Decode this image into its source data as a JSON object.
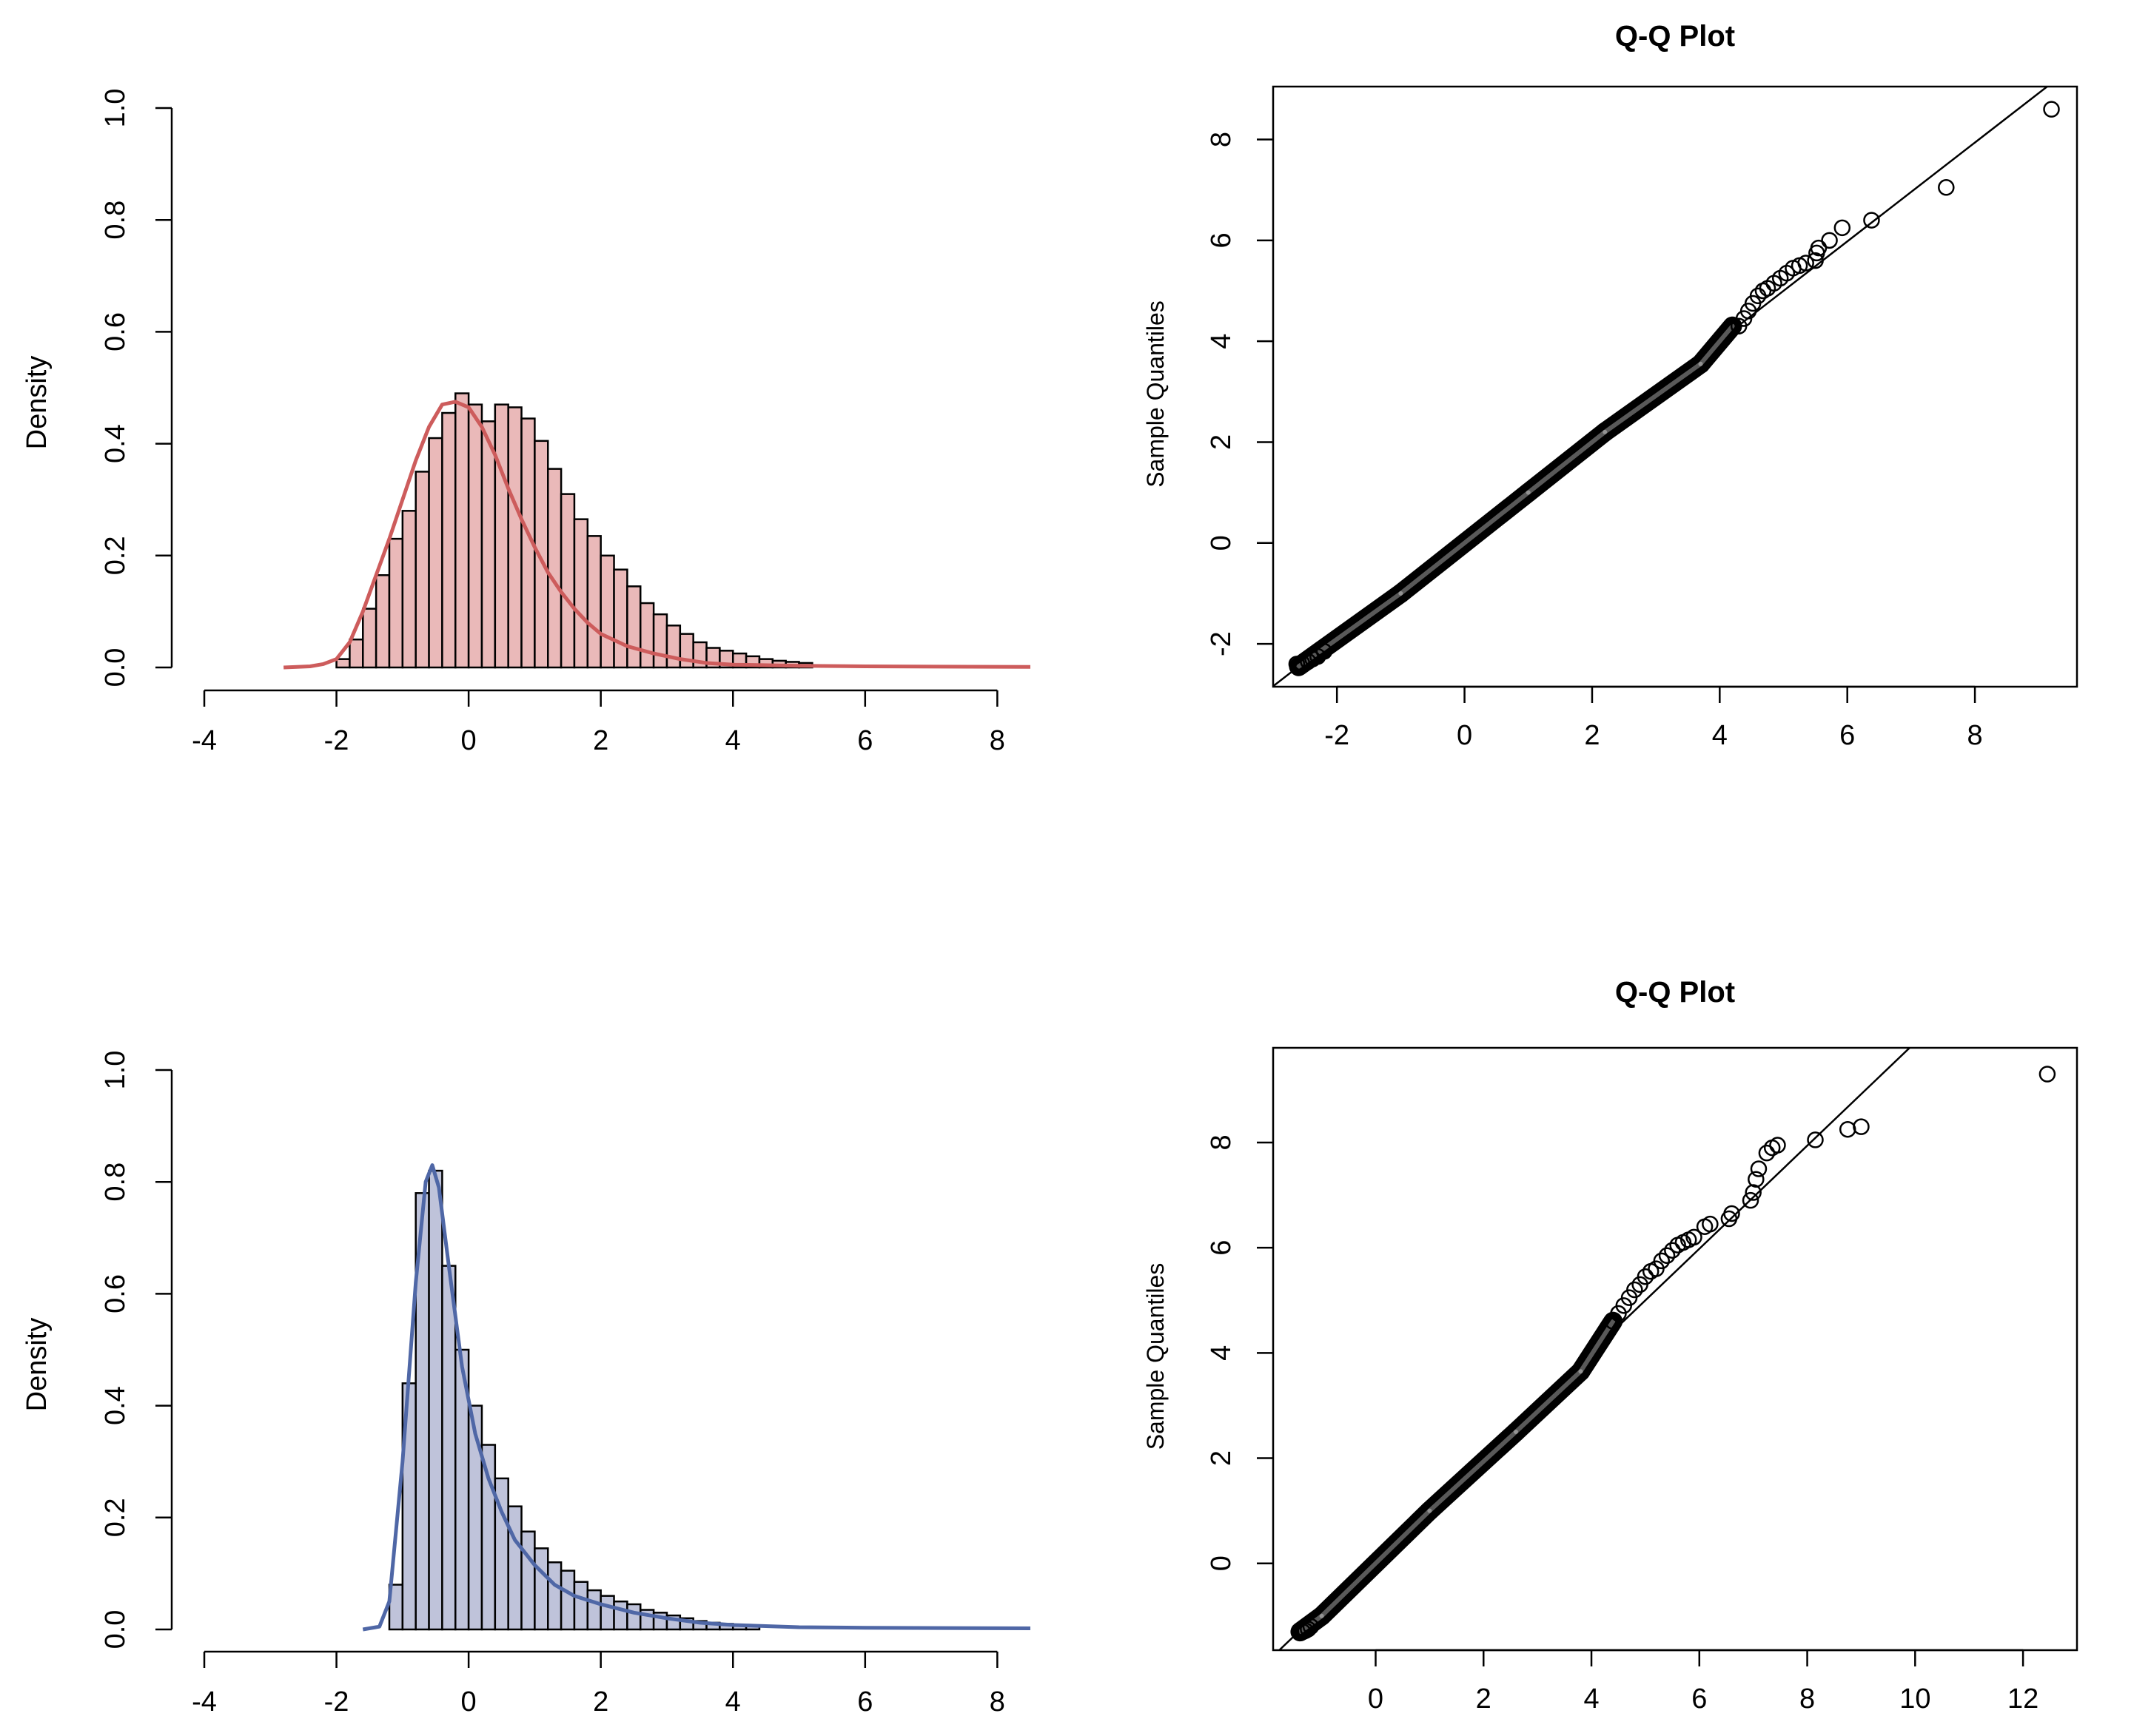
{
  "chart_data": [
    {
      "type": "histogram",
      "title": "",
      "xlabel": "",
      "ylabel": "Density",
      "xlim": [
        -4,
        8.5
      ],
      "ylim": [
        0,
        1.0
      ],
      "xticks": [
        "-4",
        "-2",
        "0",
        "2",
        "4",
        "6",
        "8"
      ],
      "yticks": [
        "0.0",
        "0.2",
        "0.4",
        "0.6",
        "0.8",
        "1.0"
      ],
      "bin_start": -2.0,
      "bin_width": 0.2,
      "bar_fill": "#eab9b9",
      "curve_color": "#cd5c5c",
      "values": [
        0.015,
        0.05,
        0.105,
        0.165,
        0.23,
        0.28,
        0.35,
        0.41,
        0.455,
        0.49,
        0.47,
        0.44,
        0.47,
        0.465,
        0.445,
        0.405,
        0.355,
        0.31,
        0.265,
        0.235,
        0.2,
        0.175,
        0.145,
        0.115,
        0.095,
        0.075,
        0.06,
        0.045,
        0.035,
        0.03,
        0.025,
        0.02,
        0.015,
        0.012,
        0.01,
        0.008
      ],
      "density_curve": [
        [
          -2.8,
          0.0
        ],
        [
          -2.4,
          0.002
        ],
        [
          -2.2,
          0.006
        ],
        [
          -2.0,
          0.015
        ],
        [
          -1.8,
          0.045
        ],
        [
          -1.6,
          0.1
        ],
        [
          -1.4,
          0.165
        ],
        [
          -1.2,
          0.23
        ],
        [
          -1.0,
          0.3
        ],
        [
          -0.8,
          0.37
        ],
        [
          -0.6,
          0.43
        ],
        [
          -0.4,
          0.47
        ],
        [
          -0.2,
          0.475
        ],
        [
          0.0,
          0.465
        ],
        [
          0.2,
          0.43
        ],
        [
          0.4,
          0.38
        ],
        [
          0.6,
          0.32
        ],
        [
          0.8,
          0.265
        ],
        [
          1.0,
          0.215
        ],
        [
          1.2,
          0.17
        ],
        [
          1.4,
          0.135
        ],
        [
          1.6,
          0.105
        ],
        [
          1.8,
          0.08
        ],
        [
          2.0,
          0.06
        ],
        [
          2.4,
          0.038
        ],
        [
          2.8,
          0.025
        ],
        [
          3.2,
          0.015
        ],
        [
          3.6,
          0.008
        ],
        [
          4.0,
          0.005
        ],
        [
          5.0,
          0.003
        ],
        [
          6.0,
          0.002
        ],
        [
          8.5,
          0.001
        ]
      ]
    },
    {
      "type": "scatter",
      "title": "Q-Q Plot",
      "xlabel": "",
      "ylabel": "Sample Quantiles",
      "xlim": [
        -3.0,
        9.6
      ],
      "ylim": [
        -2.85,
        9.05
      ],
      "xticks": [
        "-2",
        "0",
        "2",
        "4",
        "6",
        "8"
      ],
      "yticks": [
        "-2",
        "0",
        "2",
        "4",
        "6",
        "8"
      ],
      "reference_line": {
        "slope": 0.98,
        "intercept": 0.1
      },
      "dense_segments": [
        [
          -2.6,
          -2.45,
          -1.0,
          -1.0
        ],
        [
          -1.0,
          -1.0,
          1.0,
          1.0
        ],
        [
          1.0,
          1.0,
          2.2,
          2.2
        ],
        [
          2.2,
          2.2,
          3.7,
          3.55
        ],
        [
          3.7,
          3.55,
          4.2,
          4.3
        ]
      ],
      "x": [
        -2.63,
        -2.55,
        -2.45,
        -2.38,
        -2.3,
        -2.2,
        4.3,
        4.38,
        4.45,
        4.52,
        4.6,
        4.68,
        4.75,
        4.85,
        4.95,
        5.05,
        5.15,
        5.25,
        5.35,
        5.5,
        5.52,
        5.55,
        5.72,
        5.92,
        6.38,
        7.55,
        9.2
      ],
      "y": [
        -2.4,
        -2.38,
        -2.35,
        -2.3,
        -2.25,
        -2.15,
        4.3,
        4.45,
        4.6,
        4.75,
        4.9,
        5.0,
        5.05,
        5.15,
        5.25,
        5.35,
        5.45,
        5.5,
        5.55,
        5.6,
        5.75,
        5.85,
        6.0,
        6.25,
        6.4,
        7.05,
        8.6
      ]
    },
    {
      "type": "histogram",
      "title": "",
      "xlabel": "",
      "ylabel": "Density",
      "xlim": [
        -4,
        8.5
      ],
      "ylim": [
        0,
        1.0
      ],
      "xticks": [
        "-4",
        "-2",
        "0",
        "2",
        "4",
        "6",
        "8"
      ],
      "yticks": [
        "0.0",
        "0.2",
        "0.4",
        "0.6",
        "0.8",
        "1.0"
      ],
      "bin_start": -1.2,
      "bin_width": 0.2,
      "bar_fill": "#bfc3da",
      "curve_color": "#4f67a6",
      "values": [
        0.08,
        0.44,
        0.78,
        0.82,
        0.65,
        0.5,
        0.4,
        0.33,
        0.27,
        0.22,
        0.175,
        0.145,
        0.12,
        0.105,
        0.085,
        0.07,
        0.06,
        0.05,
        0.045,
        0.035,
        0.03,
        0.025,
        0.02,
        0.015,
        0.012,
        0.01,
        0.008,
        0.006
      ],
      "density_curve": [
        [
          -1.6,
          0.0
        ],
        [
          -1.35,
          0.005
        ],
        [
          -1.2,
          0.05
        ],
        [
          -1.0,
          0.3
        ],
        [
          -0.8,
          0.62
        ],
        [
          -0.65,
          0.8
        ],
        [
          -0.55,
          0.83
        ],
        [
          -0.45,
          0.79
        ],
        [
          -0.3,
          0.65
        ],
        [
          -0.1,
          0.47
        ],
        [
          0.1,
          0.35
        ],
        [
          0.3,
          0.27
        ],
        [
          0.5,
          0.21
        ],
        [
          0.7,
          0.16
        ],
        [
          1.0,
          0.115
        ],
        [
          1.3,
          0.08
        ],
        [
          1.6,
          0.06
        ],
        [
          2.0,
          0.045
        ],
        [
          2.5,
          0.03
        ],
        [
          3.0,
          0.02
        ],
        [
          3.5,
          0.012
        ],
        [
          4.0,
          0.008
        ],
        [
          5.0,
          0.004
        ],
        [
          6.0,
          0.003
        ],
        [
          8.5,
          0.002
        ]
      ]
    },
    {
      "type": "scatter",
      "title": "Q-Q Plot",
      "xlabel": "",
      "ylabel": "Sample Quantiles",
      "xlim": [
        -1.9,
        13.0
      ],
      "ylim": [
        -1.65,
        9.8
      ],
      "xticks": [
        "0",
        "2",
        "4",
        "6",
        "8",
        "10",
        "12"
      ],
      "yticks": [
        "0",
        "2",
        "4",
        "6",
        "8"
      ],
      "reference_line": {
        "slope": 0.98,
        "intercept": 0.1
      },
      "dense_segments": [
        [
          -1.4,
          -1.3,
          -1.0,
          -1.0
        ],
        [
          -1.0,
          -1.0,
          1.0,
          1.0
        ],
        [
          1.0,
          1.0,
          2.6,
          2.5
        ],
        [
          2.6,
          2.5,
          3.8,
          3.65
        ],
        [
          3.8,
          3.65,
          4.4,
          4.6
        ]
      ],
      "x": [
        -1.35,
        -1.3,
        -1.25,
        -1.2,
        4.4,
        4.5,
        4.6,
        4.7,
        4.8,
        4.9,
        5.0,
        5.1,
        5.2,
        5.3,
        5.4,
        5.5,
        5.6,
        5.7,
        5.8,
        5.9,
        6.1,
        6.2,
        6.55,
        6.6,
        6.95,
        7.0,
        7.05,
        7.1,
        7.25,
        7.35,
        7.45,
        8.15,
        8.75,
        9.0,
        12.45
      ],
      "y": [
        -1.3,
        -1.28,
        -1.25,
        -1.2,
        4.6,
        4.75,
        4.9,
        5.05,
        5.2,
        5.3,
        5.45,
        5.55,
        5.6,
        5.75,
        5.85,
        5.95,
        6.05,
        6.1,
        6.15,
        6.2,
        6.4,
        6.45,
        6.55,
        6.65,
        6.9,
        7.05,
        7.3,
        7.5,
        7.8,
        7.9,
        7.95,
        8.05,
        8.25,
        8.3,
        9.3
      ]
    }
  ]
}
